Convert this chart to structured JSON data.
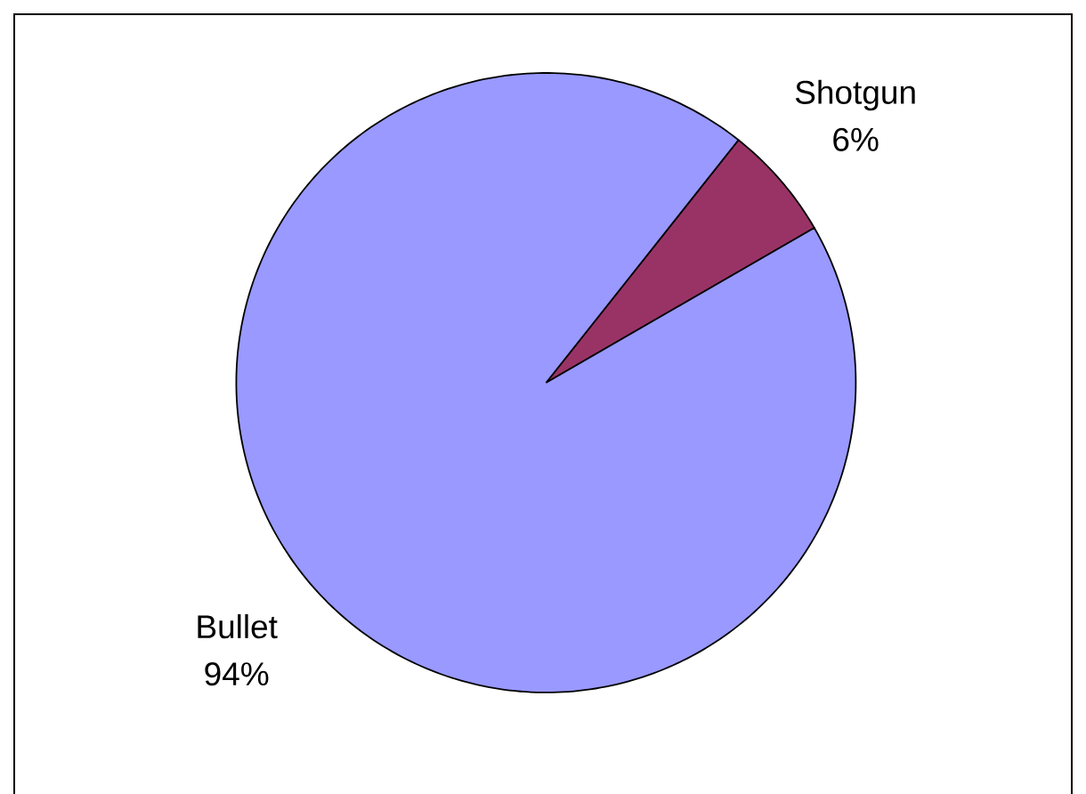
{
  "chart_data": {
    "type": "pie",
    "categories": [
      "Shotgun",
      "Bullet"
    ],
    "values": [
      6,
      94
    ],
    "colors": [
      "#993366",
      "#9999ff"
    ],
    "value_labels": [
      "6%",
      "94%"
    ]
  }
}
